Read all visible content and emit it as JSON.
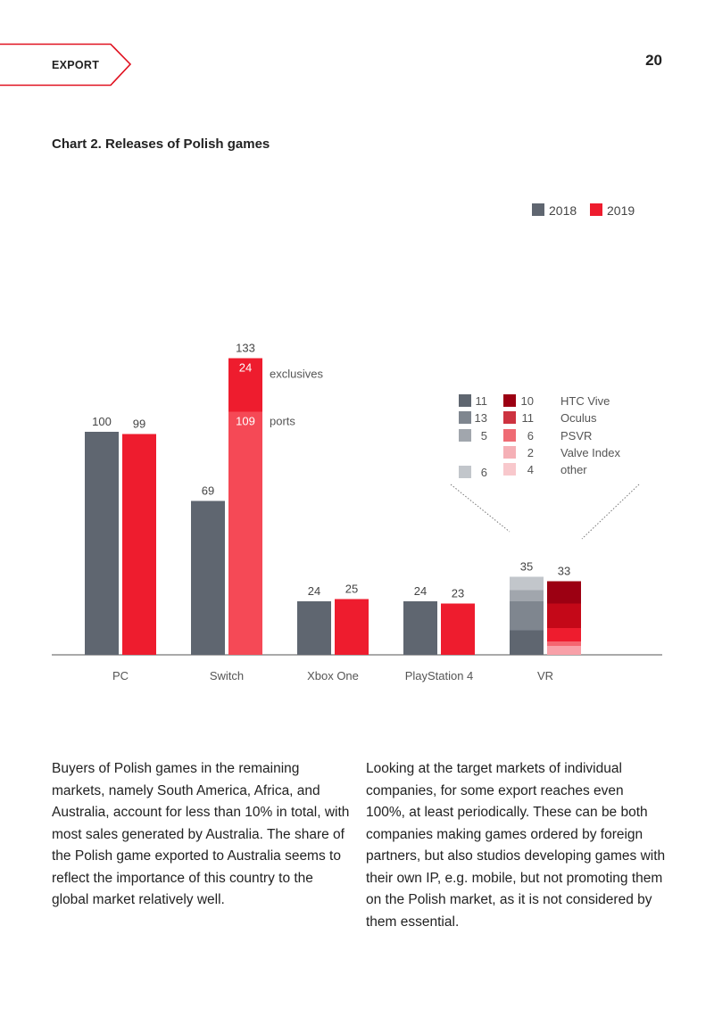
{
  "header": {
    "section": "EXPORT",
    "page_number": "20"
  },
  "chart_data": {
    "type": "bar",
    "title": "Chart 2. Releases of Polish games",
    "categories": [
      "PC",
      "Switch",
      "Xbox One",
      "PlayStation 4",
      "VR"
    ],
    "series": [
      {
        "name": "2018",
        "values": [
          100,
          69,
          24,
          24,
          35
        ]
      },
      {
        "name": "2019",
        "values": [
          99,
          133,
          25,
          23,
          33
        ]
      }
    ],
    "switch_2019_breakdown": [
      {
        "label": "exclusives",
        "value": 24
      },
      {
        "label": "ports",
        "value": 109
      }
    ],
    "vr_breakdown": [
      {
        "platform": "HTC Vive",
        "v2018": 11,
        "v2019": 10
      },
      {
        "platform": "Oculus",
        "v2018": 13,
        "v2019": 11
      },
      {
        "platform": "PSVR",
        "v2018": 5,
        "v2019": 6
      },
      {
        "platform": "Valve Index",
        "v2018": null,
        "v2019": 2
      },
      {
        "platform": "other",
        "v2018": 6,
        "v2019": 4
      }
    ],
    "ylim": [
      0,
      140
    ],
    "legend_position": "top-right",
    "grid": false,
    "colors": {
      "series2018": "#5f6670",
      "series2019": "#ee1c2e",
      "ports": "#f54956",
      "vr2018": [
        "#5f6670",
        "#7f868f",
        "#a1a6ad",
        null,
        "#c2c6cb"
      ],
      "vr2019": [
        "#9c0012",
        "#c40818",
        "#ee1c2e",
        "#f56670",
        "#f8a0a8"
      ],
      "vrLegend2019": [
        "#9c0012",
        "#cd3340",
        "#ef6b74",
        "#f5b0b6",
        "#f8c8cc"
      ]
    }
  },
  "body": {
    "col1": "Buyers of Polish games in the remaining markets, namely South America, Africa, and Australia, account for less than 10% in total, with most sales generated by Australia. The share of the Polish game exported to Australia seems to reflect the importance of this country to the global market relatively well.",
    "col2": "Looking at the target markets of individual companies, for some export reaches even 100%, at least periodically. These can be both companies making games ordered by foreign partners, but also studios developing games with their own IP, e.g. mobile, but not promoting them on the Polish market, as it is not considered by them essential."
  }
}
